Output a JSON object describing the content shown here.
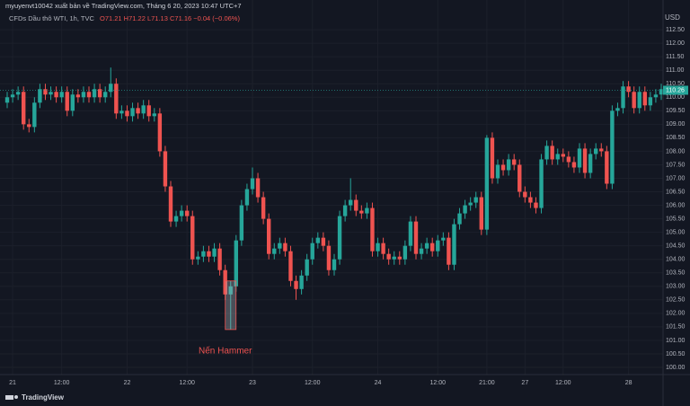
{
  "header": {
    "publisher": "myuyenvt10042 xuất bản về TradingView.com, Tháng 6 20, 2023 10:47 UTC+7",
    "symbol": "CFDs Dầu thô WTI, 1h, TVC",
    "ohlc": "O71.21 H71.22 L71.13 C71.16 −0.04 (−0.06%)"
  },
  "chart_data": {
    "type": "candlestick",
    "y_label": "USD",
    "annotation": "Nến Hammer",
    "up_color": "#26a69a",
    "down_color": "#ef5350",
    "grid": true,
    "last_price": 110.26,
    "ylim": [
      99.8,
      112.67
    ],
    "yticks": [
      {
        "value": 100,
        "label": "100.00"
      },
      {
        "value": 100.5,
        "label": "100.50"
      },
      {
        "value": 101,
        "label": "101.00"
      },
      {
        "value": 101.5,
        "label": "101.50"
      },
      {
        "value": 102,
        "label": "102.00"
      },
      {
        "value": 102.5,
        "label": "102.50"
      },
      {
        "value": 103,
        "label": "103.00"
      },
      {
        "value": 103.5,
        "label": "103.50"
      },
      {
        "value": 104,
        "label": "104.00"
      },
      {
        "value": 104.5,
        "label": "104.50"
      },
      {
        "value": 105,
        "label": "105.00"
      },
      {
        "value": 105.5,
        "label": "105.50"
      },
      {
        "value": 106,
        "label": "106.00"
      },
      {
        "value": 106.5,
        "label": "106.50"
      },
      {
        "value": 107,
        "label": "107.00"
      },
      {
        "value": 107.5,
        "label": "107.50"
      },
      {
        "value": 108,
        "label": "108.00"
      },
      {
        "value": 108.5,
        "label": "108.50"
      },
      {
        "value": 109,
        "label": "109.00"
      },
      {
        "value": 109.5,
        "label": "109.50"
      },
      {
        "value": 110,
        "label": "110.00"
      },
      {
        "value": 110.5,
        "label": "110.50"
      },
      {
        "value": 111,
        "label": "111.00"
      },
      {
        "value": 111.5,
        "label": "111.50"
      },
      {
        "value": 112,
        "label": "112.00"
      },
      {
        "value": 112.5,
        "label": "112.50"
      }
    ],
    "categories": [
      null,
      "21",
      null,
      null,
      null,
      null,
      null,
      null,
      null,
      null,
      "12:00",
      null,
      null,
      null,
      null,
      null,
      null,
      null,
      null,
      null,
      null,
      null,
      "22",
      null,
      null,
      null,
      null,
      null,
      null,
      null,
      null,
      null,
      null,
      "12:00",
      null,
      null,
      null,
      null,
      null,
      null,
      null,
      null,
      null,
      null,
      null,
      "23",
      null,
      null,
      null,
      null,
      null,
      null,
      null,
      null,
      null,
      null,
      "12:00",
      null,
      null,
      null,
      null,
      null,
      null,
      null,
      null,
      null,
      null,
      null,
      "24",
      null,
      null,
      null,
      null,
      null,
      null,
      null,
      null,
      null,
      null,
      "12:00",
      null,
      null,
      null,
      null,
      null,
      null,
      null,
      null,
      "21:00",
      null,
      null,
      null,
      null,
      null,
      null,
      "27",
      null,
      null,
      null,
      null,
      null,
      null,
      "12:00",
      null,
      null,
      null,
      null,
      null,
      null,
      null,
      null,
      null,
      null,
      null,
      "28",
      null,
      null,
      null,
      null,
      null,
      null
    ],
    "open": [
      109.8,
      110.0,
      110.1,
      110.2,
      109.0,
      108.9,
      109.8,
      110.3,
      110.1,
      110.2,
      110.0,
      110.2,
      109.5,
      110.1,
      110.0,
      110.2,
      110.0,
      110.3,
      110.0,
      110.2,
      110.5,
      109.4,
      109.5,
      109.3,
      109.6,
      109.4,
      109.7,
      109.3,
      109.4,
      108.0,
      106.7,
      105.4,
      105.6,
      105.8,
      105.6,
      104.0,
      104.1,
      104.3,
      104.1,
      104.4,
      103.6,
      102.7,
      103.0,
      104.7,
      106.0,
      106.6,
      107.0,
      106.3,
      105.5,
      104.2,
      104.4,
      104.6,
      104.3,
      103.2,
      102.9,
      103.4,
      104.0,
      104.6,
      104.8,
      104.5,
      103.6,
      104.0,
      105.6,
      106.0,
      106.2,
      105.8,
      105.7,
      105.9,
      104.3,
      104.6,
      104.2,
      104.0,
      104.1,
      104.0,
      104.5,
      105.4,
      104.2,
      104.4,
      104.6,
      104.3,
      104.7,
      104.8,
      103.8,
      105.3,
      105.7,
      106.0,
      106.1,
      106.3,
      105.1,
      108.5,
      107.0,
      107.5,
      107.3,
      107.7,
      107.5,
      106.5,
      106.3,
      106.1,
      105.9,
      107.7,
      108.2,
      107.7,
      107.9,
      107.8,
      107.6,
      107.4,
      108.1,
      107.2,
      107.9,
      108.1,
      108.0,
      106.8,
      109.5,
      109.6,
      110.4,
      110.2,
      109.6,
      110.2,
      109.7,
      110.0,
      110.1
    ],
    "high": [
      110.2,
      110.3,
      110.4,
      110.4,
      109.2,
      110.0,
      110.5,
      110.5,
      110.4,
      110.4,
      110.4,
      110.4,
      110.3,
      110.3,
      110.4,
      110.4,
      110.5,
      110.5,
      110.4,
      111.1,
      110.7,
      109.7,
      109.7,
      109.8,
      109.8,
      109.9,
      109.9,
      109.6,
      109.6,
      108.2,
      106.9,
      105.8,
      106.0,
      106.0,
      105.8,
      104.3,
      104.5,
      104.5,
      104.6,
      104.6,
      103.8,
      103.2,
      104.9,
      106.2,
      106.8,
      107.4,
      107.2,
      106.5,
      105.7,
      104.6,
      104.8,
      104.8,
      104.5,
      103.4,
      103.6,
      104.2,
      104.8,
      105.0,
      105.0,
      104.7,
      104.2,
      105.8,
      106.2,
      107.0,
      106.4,
      106.0,
      106.1,
      106.1,
      104.8,
      104.8,
      104.4,
      104.3,
      104.3,
      104.7,
      105.6,
      105.6,
      104.6,
      104.8,
      104.8,
      104.9,
      105.0,
      105.0,
      105.5,
      105.9,
      106.2,
      106.3,
      106.5,
      106.5,
      108.6,
      108.7,
      107.7,
      107.7,
      107.9,
      107.9,
      107.7,
      106.7,
      106.5,
      106.3,
      107.9,
      108.4,
      108.4,
      108.1,
      108.1,
      108.0,
      107.8,
      108.3,
      108.3,
      108.1,
      108.3,
      108.3,
      108.2,
      109.7,
      109.8,
      110.6,
      110.6,
      110.4,
      110.4,
      110.4,
      110.2,
      110.3,
      110.5
    ],
    "low": [
      109.6,
      109.8,
      109.9,
      108.8,
      108.7,
      108.7,
      109.6,
      109.9,
      109.9,
      109.8,
      109.8,
      109.3,
      109.3,
      109.8,
      109.8,
      109.8,
      109.8,
      109.8,
      109.8,
      110.0,
      109.2,
      109.2,
      109.1,
      109.1,
      109.2,
      109.2,
      109.1,
      109.1,
      107.8,
      106.5,
      105.2,
      105.2,
      105.4,
      105.4,
      103.8,
      103.8,
      103.9,
      103.9,
      103.9,
      103.4,
      102.5,
      101.4,
      102.8,
      104.5,
      105.8,
      106.4,
      106.1,
      105.3,
      104.0,
      104.0,
      104.2,
      104.1,
      103.0,
      102.5,
      102.7,
      103.2,
      103.8,
      104.4,
      104.3,
      103.4,
      103.4,
      103.8,
      105.4,
      105.8,
      105.6,
      105.5,
      105.5,
      104.1,
      104.1,
      104.0,
      103.8,
      103.8,
      103.8,
      103.8,
      104.3,
      104.0,
      104.0,
      104.2,
      104.1,
      104.1,
      104.5,
      103.6,
      103.6,
      105.1,
      105.5,
      105.8,
      105.9,
      104.9,
      104.9,
      106.8,
      106.8,
      107.1,
      107.1,
      107.3,
      106.3,
      106.1,
      105.9,
      105.7,
      105.7,
      107.5,
      107.5,
      107.5,
      107.6,
      107.4,
      107.2,
      107.2,
      107.0,
      107.0,
      107.7,
      107.8,
      106.6,
      106.6,
      109.3,
      109.4,
      110.0,
      109.4,
      109.4,
      109.5,
      109.5,
      109.8,
      109.9
    ],
    "close": [
      110.0,
      110.1,
      110.2,
      109.0,
      108.9,
      109.8,
      110.3,
      110.1,
      110.2,
      110.0,
      110.2,
      109.5,
      110.1,
      110.0,
      110.2,
      110.0,
      110.3,
      110.0,
      110.2,
      110.5,
      109.4,
      109.5,
      109.3,
      109.6,
      109.4,
      109.7,
      109.3,
      109.4,
      108.0,
      106.7,
      105.4,
      105.6,
      105.8,
      105.6,
      104.0,
      104.1,
      104.3,
      104.1,
      104.4,
      103.6,
      102.7,
      103.0,
      104.7,
      106.0,
      106.6,
      107.0,
      106.3,
      105.5,
      104.2,
      104.4,
      104.6,
      104.3,
      103.2,
      102.9,
      103.4,
      104.0,
      104.6,
      104.8,
      104.5,
      103.6,
      104.0,
      105.6,
      106.0,
      106.2,
      105.8,
      105.7,
      105.9,
      104.3,
      104.6,
      104.2,
      104.0,
      104.1,
      104.0,
      104.5,
      105.4,
      104.2,
      104.4,
      104.6,
      104.3,
      104.7,
      104.8,
      103.8,
      105.3,
      105.7,
      106.0,
      106.1,
      106.3,
      105.1,
      108.5,
      107.0,
      107.5,
      107.3,
      107.7,
      107.5,
      106.5,
      106.3,
      106.1,
      105.9,
      107.7,
      108.2,
      107.7,
      107.9,
      107.8,
      107.6,
      107.4,
      108.1,
      107.2,
      107.9,
      108.1,
      108.0,
      106.8,
      109.5,
      109.6,
      110.4,
      110.2,
      109.6,
      110.2,
      109.7,
      110.0,
      110.1,
      110.3
    ]
  },
  "footer": {
    "brand": "TradingView"
  }
}
